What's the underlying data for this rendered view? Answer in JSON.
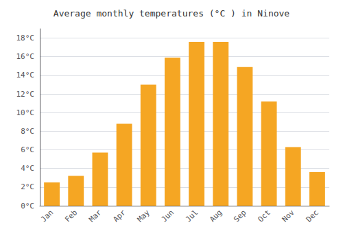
{
  "chart_data": {
    "type": "bar",
    "title": "Average monthly temperatures (°C ) in Ninove",
    "categories": [
      "Jan",
      "Feb",
      "Mar",
      "Apr",
      "May",
      "Jun",
      "Jul",
      "Aug",
      "Sep",
      "Oct",
      "Nov",
      "Dec"
    ],
    "values": [
      2.5,
      3.2,
      5.7,
      8.8,
      13.0,
      15.9,
      17.6,
      17.6,
      14.9,
      11.2,
      6.3,
      3.6
    ],
    "color": "#F5A623",
    "ylim": [
      0,
      19
    ],
    "yticks": [
      {
        "value": 0,
        "label": "0°C"
      },
      {
        "value": 2,
        "label": "2°C"
      },
      {
        "value": 4,
        "label": "4°C"
      },
      {
        "value": 6,
        "label": "6°C"
      },
      {
        "value": 8,
        "label": "8°C"
      },
      {
        "value": 10,
        "label": "10°C"
      },
      {
        "value": 12,
        "label": "12°C"
      },
      {
        "value": 14,
        "label": "14°C"
      },
      {
        "value": 16,
        "label": "16°C"
      },
      {
        "value": 18,
        "label": "18°C"
      }
    ],
    "grid": true
  }
}
